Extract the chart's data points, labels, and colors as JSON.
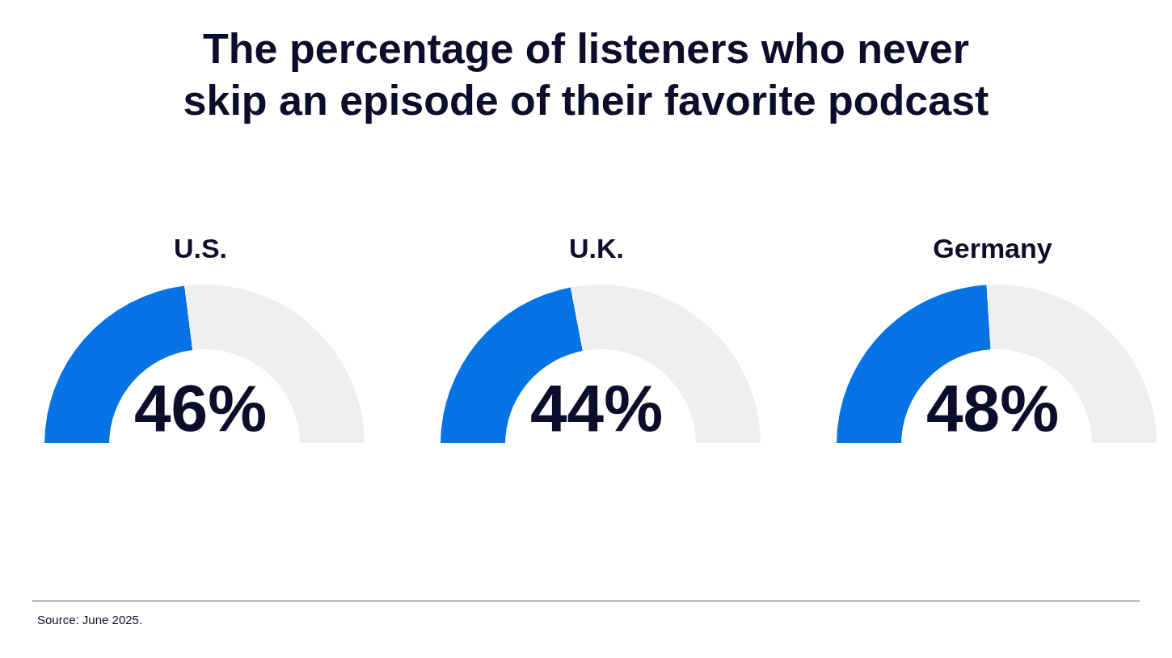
{
  "chart_data": [
    {
      "type": "donut",
      "title": "The percentage of listeners who never skip an episode of their favorite podcast",
      "subtitle": "U.S.",
      "categories": [
        null,
        null
      ],
      "values": [
        46,
        54
      ],
      "colors": [
        "#0573e3",
        "#efefef"
      ],
      "value_labels": [
        "46%",
        null
      ],
      "annotations": [
        "Source: June 2025."
      ]
    },
    {
      "type": "donut",
      "subtitle": "U.K.",
      "categories": [
        null,
        null
      ],
      "values": [
        44,
        56
      ],
      "colors": [
        "#0573e3",
        "#efefef"
      ],
      "value_labels": [
        "44%",
        null
      ]
    },
    {
      "type": "donut",
      "subtitle": "Germany",
      "categories": [
        null,
        null
      ],
      "values": [
        48,
        52
      ],
      "colors": [
        "#0573e3",
        "#efefef"
      ],
      "value_labels": [
        "48%",
        null
      ]
    }
  ]
}
